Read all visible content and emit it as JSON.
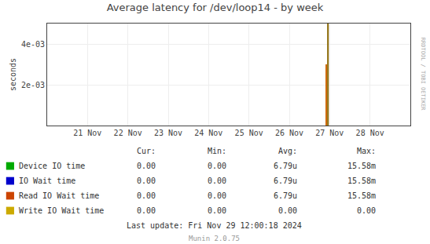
{
  "chart_data": {
    "type": "line",
    "title": "Average latency for /dev/loop14 - by week",
    "ylabel": "seconds",
    "xlim": [
      1732060800,
      1732838400
    ],
    "xticks": [
      {
        "value": 1732147200,
        "label": "21 Nov"
      },
      {
        "value": 1732233600,
        "label": "22 Nov"
      },
      {
        "value": 1732320000,
        "label": "23 Nov"
      },
      {
        "value": 1732406400,
        "label": "24 Nov"
      },
      {
        "value": 1732492800,
        "label": "25 Nov"
      },
      {
        "value": 1732579200,
        "label": "26 Nov"
      },
      {
        "value": 1732665600,
        "label": "27 Nov"
      },
      {
        "value": 1732752000,
        "label": "28 Nov"
      }
    ],
    "ylim": [
      0,
      0.005
    ],
    "yticks": [
      {
        "value": 0.002,
        "label": "2e-03"
      },
      {
        "value": 0.004,
        "label": "4e-03"
      }
    ],
    "grid": true,
    "series": [
      {
        "color": "#cc6600",
        "x": [
          1732658400,
          1732658400
        ],
        "values": [
          0,
          0.003
        ]
      },
      {
        "color": "#886600",
        "x": [
          1732662000,
          1732662000
        ],
        "values": [
          0,
          0.005
        ]
      }
    ],
    "legend_table": {
      "headers": [
        "Cur:",
        "Min:",
        "Avg:",
        "Max:"
      ],
      "rows": [
        {
          "name": "Device IO time",
          "color": "#00aa00",
          "values": [
            "0.00",
            "0.00",
            "6.79u",
            "15.58m"
          ]
        },
        {
          "name": "IO Wait time",
          "color": "#0000cc",
          "values": [
            "0.00",
            "0.00",
            "6.79u",
            "15.58m"
          ]
        },
        {
          "name": "Read IO Wait time",
          "color": "#cc4400",
          "values": [
            "0.00",
            "0.00",
            "6.79u",
            "15.58m"
          ]
        },
        {
          "name": "Write IO Wait time",
          "color": "#ccaa00",
          "values": [
            "0.00",
            "0.00",
            "0.00",
            "0.00"
          ]
        }
      ]
    },
    "watermark": "RRDTOOL / TOBI OETIKER",
    "last_update": "Last update: Fri Nov 29 12:00:18 2024",
    "footer": "Munin 2.0.75"
  }
}
